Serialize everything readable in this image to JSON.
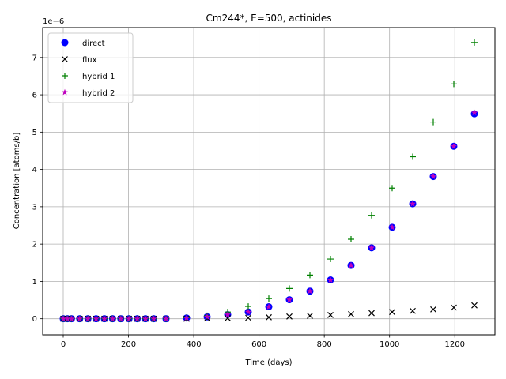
{
  "chart_data": {
    "type": "scatter",
    "title": "Cm244*, E=500, actinides",
    "xlabel": "Time (days)",
    "ylabel": "Concentration [atoms/b]",
    "y_offset_text": "1e−6",
    "xlim": [
      -63,
      1323
    ],
    "ylim": [
      -4.3e-07,
      7.8e-06
    ],
    "xticks": [
      0,
      200,
      400,
      600,
      800,
      1000,
      1200
    ],
    "yticks": [
      0,
      1e-06,
      2e-06,
      3e-06,
      4e-06,
      5e-06,
      6e-06,
      7e-06
    ],
    "ytick_labels": [
      "0",
      "1",
      "2",
      "3",
      "4",
      "5",
      "6",
      "7"
    ],
    "grid": true,
    "legend_position": "top-left",
    "x": [
      0,
      12.6,
      25.2,
      50.4,
      75.6,
      100.8,
      126,
      151.2,
      176.4,
      201.6,
      226.8,
      252,
      277.2,
      315,
      378,
      441,
      504,
      567,
      630,
      693,
      756,
      819,
      882,
      945,
      1008,
      1071,
      1134,
      1197,
      1260
    ],
    "series": [
      {
        "name": "direct",
        "marker": "circle",
        "color": "#0000ff",
        "values": [
          0,
          0,
          0,
          0,
          0,
          0,
          0,
          0,
          0,
          0,
          0,
          0,
          0,
          0,
          2e-08,
          5e-08,
          1.1e-07,
          1.8e-07,
          3.2e-07,
          5.1e-07,
          7.4e-07,
          1.04e-06,
          1.43e-06,
          1.9e-06,
          2.45e-06,
          3.08e-06,
          3.81e-06,
          4.62e-06,
          5.49e-06
        ]
      },
      {
        "name": "flux",
        "marker": "x",
        "color": "#000000",
        "values": [
          0,
          0,
          0,
          0,
          0,
          0,
          0,
          0,
          0,
          0,
          0,
          0,
          0,
          0,
          0,
          1e-08,
          1.5e-08,
          2.5e-08,
          4e-08,
          6e-08,
          8e-08,
          1e-07,
          1.25e-07,
          1.5e-07,
          1.8e-07,
          2.1e-07,
          2.5e-07,
          3e-07,
          3.6e-07
        ]
      },
      {
        "name": "hybrid 1",
        "marker": "plus",
        "color": "#008000",
        "values": [
          0,
          0,
          0,
          0,
          0,
          0,
          0,
          0,
          0,
          0,
          0,
          0,
          0,
          0,
          3e-08,
          8e-08,
          1.8e-07,
          3.3e-07,
          5.4e-07,
          8.1e-07,
          1.17e-06,
          1.6e-06,
          2.13e-06,
          2.77e-06,
          3.5e-06,
          4.34e-06,
          5.27e-06,
          6.29e-06,
          7.4e-06
        ]
      },
      {
        "name": "hybrid 2",
        "marker": "star",
        "color": "#bf00bf",
        "values": [
          0,
          0,
          0,
          0,
          0,
          0,
          0,
          0,
          0,
          0,
          0,
          0,
          0,
          0,
          2e-08,
          5e-08,
          1.1e-07,
          1.8e-07,
          3.2e-07,
          5.1e-07,
          7.4e-07,
          1.04e-06,
          1.43e-06,
          1.9e-06,
          2.45e-06,
          3.08e-06,
          3.81e-06,
          4.62e-06,
          5.52e-06
        ]
      }
    ]
  }
}
